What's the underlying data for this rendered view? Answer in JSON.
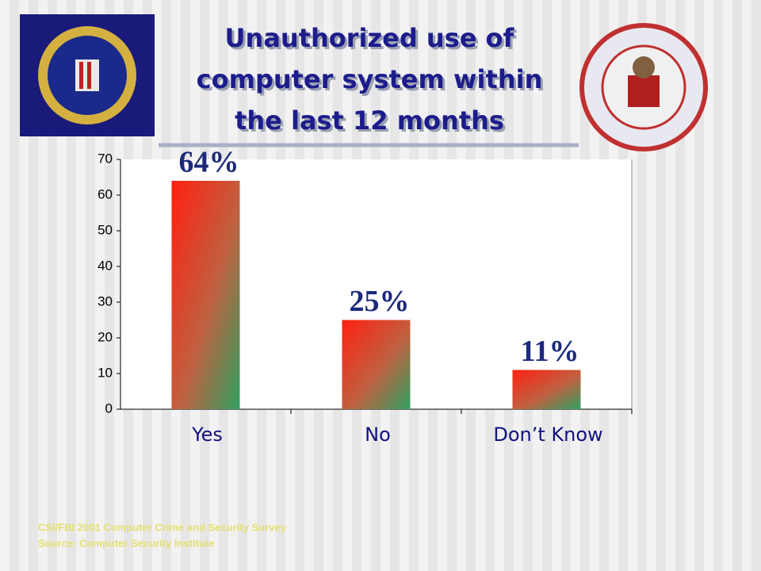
{
  "chart_data": {
    "type": "bar",
    "title_lines": [
      "Unauthorized use of",
      "computer system within",
      "the last 12 months"
    ],
    "categories": [
      "Yes",
      "No",
      "Don’t Know"
    ],
    "values": [
      64,
      25,
      11
    ],
    "value_labels": [
      "64%",
      "25%",
      "11%"
    ],
    "ylim": [
      0,
      70
    ],
    "yticks": [
      0,
      10,
      20,
      30,
      40,
      50,
      60,
      70
    ],
    "source_lines": [
      "CSI/FBI 2001 Computer Crime and Security Survey",
      "Source: Computer Security Institute"
    ]
  }
}
